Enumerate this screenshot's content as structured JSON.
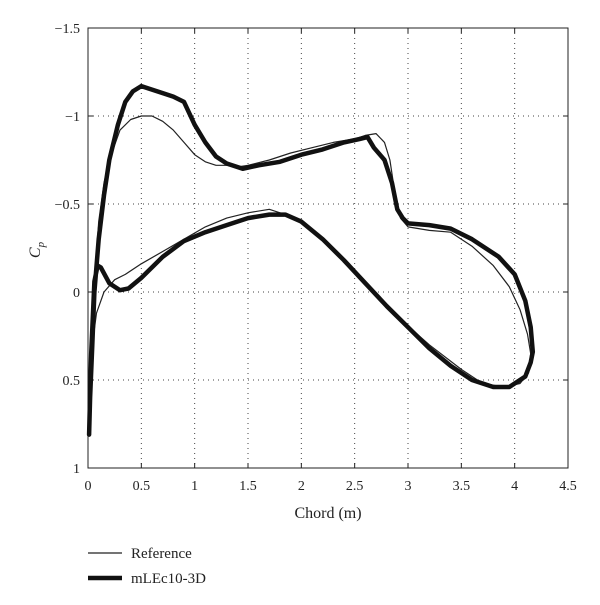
{
  "chart_data": {
    "type": "line",
    "title": "",
    "xlabel": "Chord (m)",
    "ylabel": "C",
    "ylabel_sub": "p",
    "xlim": [
      0,
      4.5
    ],
    "ylim": [
      -1.5,
      1
    ],
    "y_inverted": true,
    "grid": true,
    "grid_style": "dotted",
    "legend_placement": "below-left",
    "x_ticks": [
      0,
      0.5,
      1,
      1.5,
      2,
      2.5,
      3,
      3.5,
      4,
      4.5
    ],
    "x_tick_labels": [
      "0",
      "0.5",
      "1",
      "1.5",
      "2",
      "2.5",
      "3",
      "3.5",
      "4",
      "4.5"
    ],
    "y_ticks": [
      -1.5,
      -1,
      -0.5,
      0,
      0.5,
      1
    ],
    "y_tick_labels": [
      "−1.5",
      "−1",
      "−0.5",
      "0",
      "0.5",
      "1"
    ],
    "series": [
      {
        "name": "Reference",
        "color": "#222222",
        "width": 1.2,
        "points": [
          [
            0.02,
            0.5
          ],
          [
            0.05,
            0.05
          ],
          [
            0.1,
            -0.4
          ],
          [
            0.15,
            -0.62
          ],
          [
            0.2,
            -0.75
          ],
          [
            0.3,
            -0.92
          ],
          [
            0.4,
            -0.98
          ],
          [
            0.5,
            -1.0
          ],
          [
            0.6,
            -1.0
          ],
          [
            0.7,
            -0.97
          ],
          [
            0.8,
            -0.92
          ],
          [
            0.9,
            -0.85
          ],
          [
            1.0,
            -0.78
          ],
          [
            1.1,
            -0.74
          ],
          [
            1.2,
            -0.72
          ],
          [
            1.3,
            -0.72
          ],
          [
            1.4,
            -0.71
          ],
          [
            1.5,
            -0.72
          ],
          [
            1.7,
            -0.75
          ],
          [
            1.9,
            -0.79
          ],
          [
            2.1,
            -0.82
          ],
          [
            2.3,
            -0.85
          ],
          [
            2.5,
            -0.87
          ],
          [
            2.6,
            -0.89
          ],
          [
            2.7,
            -0.9
          ],
          [
            2.78,
            -0.85
          ],
          [
            2.83,
            -0.75
          ],
          [
            2.88,
            -0.55
          ],
          [
            2.93,
            -0.42
          ],
          [
            3.0,
            -0.37
          ],
          [
            3.2,
            -0.35
          ],
          [
            3.4,
            -0.34
          ],
          [
            3.6,
            -0.26
          ],
          [
            3.8,
            -0.15
          ],
          [
            3.95,
            -0.03
          ],
          [
            4.05,
            0.1
          ],
          [
            4.12,
            0.24
          ],
          [
            4.15,
            0.35
          ],
          [
            4.13,
            0.46
          ],
          [
            4.05,
            0.52
          ],
          [
            3.9,
            0.54
          ],
          [
            3.7,
            0.52
          ],
          [
            3.5,
            0.44
          ],
          [
            3.2,
            0.3
          ],
          [
            2.9,
            0.14
          ],
          [
            2.6,
            -0.04
          ],
          [
            2.35,
            -0.2
          ],
          [
            2.1,
            -0.35
          ],
          [
            1.9,
            -0.43
          ],
          [
            1.7,
            -0.47
          ],
          [
            1.5,
            -0.45
          ],
          [
            1.3,
            -0.42
          ],
          [
            1.1,
            -0.37
          ],
          [
            0.9,
            -0.3
          ],
          [
            0.7,
            -0.23
          ],
          [
            0.5,
            -0.16
          ],
          [
            0.35,
            -0.1
          ],
          [
            0.25,
            -0.07
          ],
          [
            0.15,
            0.0
          ],
          [
            0.08,
            0.12
          ],
          [
            0.04,
            0.3
          ],
          [
            0.02,
            0.5
          ]
        ]
      },
      {
        "name": "mLEc10-3D",
        "color": "#111111",
        "width": 4.5,
        "points": [
          [
            0.01,
            0.81
          ],
          [
            0.03,
            0.35
          ],
          [
            0.06,
            -0.06
          ],
          [
            0.09,
            -0.15
          ],
          [
            0.12,
            -0.14
          ],
          [
            0.2,
            -0.05
          ],
          [
            0.3,
            -0.01
          ],
          [
            0.38,
            -0.02
          ],
          [
            0.5,
            -0.08
          ],
          [
            0.7,
            -0.2
          ],
          [
            0.9,
            -0.29
          ],
          [
            1.1,
            -0.34
          ],
          [
            1.3,
            -0.38
          ],
          [
            1.5,
            -0.42
          ],
          [
            1.7,
            -0.44
          ],
          [
            1.85,
            -0.44
          ],
          [
            2.0,
            -0.4
          ],
          [
            2.2,
            -0.3
          ],
          [
            2.4,
            -0.18
          ],
          [
            2.6,
            -0.05
          ],
          [
            2.8,
            0.08
          ],
          [
            3.0,
            0.2
          ],
          [
            3.2,
            0.32
          ],
          [
            3.4,
            0.42
          ],
          [
            3.6,
            0.5
          ],
          [
            3.8,
            0.54
          ],
          [
            3.95,
            0.54
          ],
          [
            4.1,
            0.48
          ],
          [
            4.15,
            0.4
          ],
          [
            4.17,
            0.34
          ],
          [
            4.15,
            0.2
          ],
          [
            4.1,
            0.05
          ],
          [
            4.0,
            -0.1
          ],
          [
            3.85,
            -0.2
          ],
          [
            3.6,
            -0.3
          ],
          [
            3.4,
            -0.36
          ],
          [
            3.2,
            -0.38
          ],
          [
            3.0,
            -0.39
          ],
          [
            2.95,
            -0.42
          ],
          [
            2.9,
            -0.47
          ],
          [
            2.85,
            -0.62
          ],
          [
            2.78,
            -0.75
          ],
          [
            2.68,
            -0.82
          ],
          [
            2.62,
            -0.88
          ],
          [
            2.55,
            -0.87
          ],
          [
            2.4,
            -0.85
          ],
          [
            2.2,
            -0.81
          ],
          [
            2.0,
            -0.78
          ],
          [
            1.8,
            -0.74
          ],
          [
            1.6,
            -0.72
          ],
          [
            1.45,
            -0.7
          ],
          [
            1.3,
            -0.73
          ],
          [
            1.2,
            -0.77
          ],
          [
            1.1,
            -0.85
          ],
          [
            1.0,
            -0.95
          ],
          [
            0.9,
            -1.08
          ],
          [
            0.8,
            -1.11
          ],
          [
            0.7,
            -1.13
          ],
          [
            0.6,
            -1.15
          ],
          [
            0.5,
            -1.17
          ],
          [
            0.42,
            -1.14
          ],
          [
            0.35,
            -1.08
          ],
          [
            0.28,
            -0.95
          ],
          [
            0.2,
            -0.75
          ],
          [
            0.15,
            -0.55
          ],
          [
            0.1,
            -0.3
          ],
          [
            0.06,
            0.0
          ],
          [
            0.04,
            0.3
          ],
          [
            0.02,
            0.6
          ],
          [
            0.01,
            0.81
          ]
        ]
      }
    ]
  }
}
